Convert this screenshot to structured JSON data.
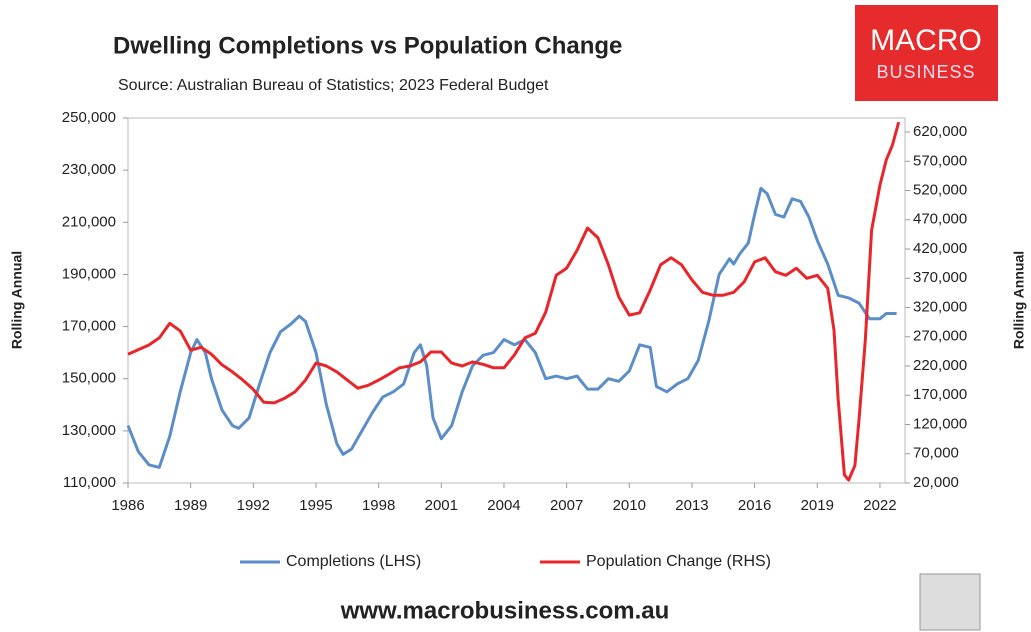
{
  "chart_data": {
    "type": "line",
    "title": "Dwelling Completions vs Population Change",
    "subtitle": "Source: Australian Bureau of Statistics; 2023 Federal Budget",
    "ylabel": "Rolling Annual",
    "y2label": "Rolling Annual",
    "xlim": [
      1986,
      2023.2
    ],
    "xticks": [
      1986,
      1989,
      1992,
      1995,
      1998,
      2001,
      2004,
      2007,
      2010,
      2013,
      2016,
      2019,
      2022
    ],
    "ylim": [
      110000,
      250000
    ],
    "yticks": [
      {
        "value": 110000,
        "label": "110,000"
      },
      {
        "value": 130000,
        "label": "130,000"
      },
      {
        "value": 150000,
        "label": "150,000"
      },
      {
        "value": 170000,
        "label": "170,000"
      },
      {
        "value": 190000,
        "label": "190,000"
      },
      {
        "value": 210000,
        "label": "210,000"
      },
      {
        "value": 230000,
        "label": "230,000"
      },
      {
        "value": 250000,
        "label": "250,000"
      }
    ],
    "y2lim": [
      20000,
      644000
    ],
    "y2ticks": [
      {
        "value": 20000,
        "label": "20,000"
      },
      {
        "value": 70000,
        "label": "70,000"
      },
      {
        "value": 120000,
        "label": "120,000"
      },
      {
        "value": 170000,
        "label": "170,000"
      },
      {
        "value": 220000,
        "label": "220,000"
      },
      {
        "value": 270000,
        "label": "270,000"
      },
      {
        "value": 320000,
        "label": "320,000"
      },
      {
        "value": 370000,
        "label": "370,000"
      },
      {
        "value": 420000,
        "label": "420,000"
      },
      {
        "value": 470000,
        "label": "470,000"
      },
      {
        "value": 520000,
        "label": "520,000"
      },
      {
        "value": 570000,
        "label": "570,000"
      },
      {
        "value": 620000,
        "label": "620,000"
      }
    ],
    "grid": false,
    "legend": "bottom",
    "series": [
      {
        "name": "Completions (LHS)",
        "color": "#5b8ec9",
        "axis": "y",
        "x": [
          1986.0,
          1986.5,
          1987.0,
          1987.5,
          1988.0,
          1988.5,
          1989.0,
          1989.3,
          1989.7,
          1990.0,
          1990.5,
          1991.0,
          1991.3,
          1991.8,
          1992.3,
          1992.8,
          1993.3,
          1993.8,
          1994.2,
          1994.5,
          1995.0,
          1995.5,
          1996.0,
          1996.3,
          1996.7,
          1997.2,
          1997.7,
          1998.2,
          1998.7,
          1999.2,
          1999.7,
          2000.0,
          2000.3,
          2000.6,
          2001.0,
          2001.5,
          2002.0,
          2002.5,
          2003.0,
          2003.5,
          2004.0,
          2004.5,
          2005.0,
          2005.5,
          2006.0,
          2006.5,
          2007.0,
          2007.5,
          2008.0,
          2008.5,
          2009.0,
          2009.5,
          2010.0,
          2010.5,
          2011.0,
          2011.3,
          2011.8,
          2012.3,
          2012.8,
          2013.3,
          2013.8,
          2014.3,
          2014.8,
          2015.0,
          2015.3,
          2015.7,
          2016.0,
          2016.3,
          2016.6,
          2017.0,
          2017.4,
          2017.8,
          2018.2,
          2018.6,
          2019.0,
          2019.5,
          2020.0,
          2020.5,
          2021.0,
          2021.5,
          2022.0,
          2022.3,
          2022.8
        ],
        "values": [
          132000,
          122000,
          117000,
          116000,
          128000,
          145000,
          160000,
          165000,
          160000,
          150000,
          138000,
          132000,
          131000,
          135000,
          148000,
          160000,
          168000,
          171000,
          174000,
          172000,
          160000,
          140000,
          125000,
          121000,
          123000,
          130000,
          137000,
          143000,
          145000,
          148000,
          160000,
          163000,
          155000,
          135000,
          127000,
          132000,
          145000,
          155000,
          159000,
          160000,
          165000,
          163000,
          165000,
          160000,
          150000,
          151000,
          150000,
          151000,
          146000,
          146000,
          150000,
          149000,
          153000,
          163000,
          162000,
          147000,
          145000,
          148000,
          150000,
          157000,
          172000,
          190000,
          196000,
          194000,
          198000,
          202000,
          213000,
          223000,
          221000,
          213000,
          212000,
          219000,
          218000,
          212000,
          203000,
          194000,
          182000,
          181000,
          179000,
          173000,
          173000,
          175000,
          175000
        ]
      },
      {
        "name": "Population Change (RHS)",
        "color": "#e8262a",
        "axis": "y2",
        "x": [
          1986.0,
          1987.0,
          1987.5,
          1988.0,
          1988.5,
          1989.0,
          1989.5,
          1990.0,
          1990.5,
          1991.0,
          1991.5,
          1992.0,
          1992.5,
          1993.0,
          1993.5,
          1994.0,
          1994.5,
          1995.0,
          1995.5,
          1996.0,
          1996.5,
          1997.0,
          1997.5,
          1998.0,
          1998.5,
          1999.0,
          1999.5,
          2000.0,
          2000.5,
          2001.0,
          2001.5,
          2002.0,
          2002.5,
          2003.0,
          2003.5,
          2004.0,
          2004.5,
          2005.0,
          2005.5,
          2006.0,
          2006.5,
          2007.0,
          2007.5,
          2008.0,
          2008.5,
          2009.0,
          2009.5,
          2010.0,
          2010.5,
          2011.0,
          2011.5,
          2012.0,
          2012.5,
          2013.0,
          2013.5,
          2014.0,
          2014.5,
          2015.0,
          2015.5,
          2016.0,
          2016.5,
          2017.0,
          2017.5,
          2018.0,
          2018.5,
          2019.0,
          2019.5,
          2019.8,
          2020.0,
          2020.3,
          2020.5,
          2020.8,
          2021.0,
          2021.3,
          2021.6,
          2022.0,
          2022.3,
          2022.6,
          2022.9
        ],
        "values": [
          240000,
          256000,
          268000,
          293000,
          280000,
          247000,
          252000,
          240000,
          222000,
          210000,
          196000,
          180000,
          158000,
          157000,
          165000,
          176000,
          196000,
          225000,
          220000,
          210000,
          196000,
          182000,
          187000,
          196000,
          206000,
          217000,
          220000,
          227000,
          244000,
          244000,
          225000,
          220000,
          227000,
          223000,
          217000,
          217000,
          239000,
          268000,
          276000,
          312000,
          375000,
          387000,
          418000,
          456000,
          439000,
          393000,
          338000,
          307000,
          311000,
          350000,
          393000,
          405000,
          393000,
          367000,
          346000,
          341000,
          341000,
          346000,
          364000,
          398000,
          405000,
          381000,
          375000,
          387000,
          370000,
          375000,
          353000,
          281000,
          162000,
          34000,
          25000,
          50000,
          128000,
          264000,
          452000,
          529000,
          572000,
          598000,
          637000
        ]
      }
    ]
  },
  "logo": {
    "line1": "MACRO",
    "line2": "BUSINESS"
  },
  "footer": "www.macrobusiness.com.au"
}
